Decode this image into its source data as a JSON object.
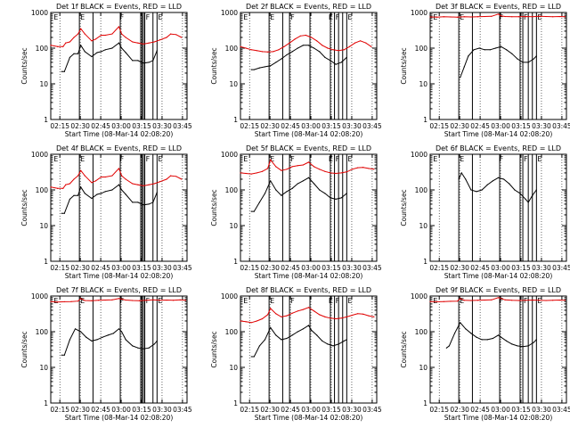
{
  "colors": {
    "black_series": "#000000",
    "red_series": "#e00000",
    "axis": "#000000"
  },
  "shared": {
    "ylabel": "Counts/sec",
    "xlabel": "Start Time (08-Mar-14 02:08:20)",
    "x_ticks": [
      "02:15",
      "02:30",
      "02:45",
      "03:00",
      "03:15",
      "03:30",
      "03:45"
    ],
    "y_ticks": [
      "1",
      "10",
      "100",
      "1000"
    ],
    "x_range_minutes": [
      0,
      100
    ],
    "x_tick_minutes": [
      6.67,
      21.67,
      36.67,
      51.67,
      66.67,
      81.67,
      96.67
    ],
    "y_range": [
      1,
      1000
    ],
    "y_scale": "log"
  },
  "chart_data": [
    {
      "type": "line",
      "title": "Det 1f BLACK = Events, RED = LLD",
      "flags": [
        "E",
        "E",
        "F",
        "F",
        "E"
      ],
      "flag_minutes": [
        1.5,
        21,
        50,
        69,
        78
      ],
      "vlines_minutes": [
        21,
        31,
        51,
        66,
        67,
        68,
        69,
        75,
        78
      ],
      "series": [
        {
          "name": "BLACK = Events",
          "x": [
            8,
            10,
            14,
            17,
            20,
            22,
            25,
            30,
            34,
            37,
            40,
            45,
            50,
            52,
            55,
            60,
            64,
            68,
            72,
            75,
            78
          ],
          "values": [
            22,
            22,
            55,
            70,
            70,
            120,
            80,
            58,
            75,
            80,
            90,
            100,
            140,
            100,
            75,
            45,
            45,
            38,
            40,
            45,
            85
          ]
        },
        {
          "name": "RED = LLD",
          "x": [
            0,
            5,
            9,
            11,
            14,
            17,
            20,
            22,
            25,
            30,
            33,
            37,
            40,
            45,
            50,
            52,
            55,
            60,
            64,
            68,
            72,
            76,
            80,
            85,
            88,
            92,
            96
          ],
          "values": [
            120,
            110,
            110,
            140,
            150,
            200,
            250,
            350,
            250,
            160,
            180,
            230,
            230,
            250,
            400,
            250,
            200,
            150,
            140,
            130,
            140,
            150,
            170,
            200,
            250,
            240,
            200
          ]
        }
      ]
    },
    {
      "type": "line",
      "title": "Det 2f BLACK = Events, RED = LLD",
      "flags": [
        "E",
        "E",
        "F",
        "E",
        "F",
        "E"
      ],
      "flag_minutes": [
        1.5,
        21,
        36,
        64,
        69,
        78
      ],
      "vlines_minutes": [
        21,
        31,
        36,
        51,
        66,
        69,
        72,
        75,
        78
      ],
      "series": [
        {
          "name": "BLACK = Events",
          "x": [
            8,
            10,
            14,
            18,
            22,
            26,
            30,
            34,
            38,
            42,
            46,
            50,
            54,
            58,
            62,
            66,
            70,
            74,
            78
          ],
          "values": [
            25,
            25,
            28,
            30,
            32,
            40,
            50,
            65,
            80,
            100,
            120,
            120,
            100,
            80,
            55,
            45,
            35,
            40,
            55
          ]
        },
        {
          "name": "RED = LLD",
          "x": [
            0,
            4,
            8,
            12,
            16,
            20,
            24,
            28,
            32,
            36,
            40,
            44,
            48,
            52,
            56,
            60,
            64,
            68,
            72,
            76,
            80,
            84,
            88,
            92,
            96
          ],
          "values": [
            110,
            100,
            90,
            85,
            80,
            78,
            80,
            90,
            110,
            140,
            180,
            220,
            230,
            200,
            160,
            120,
            100,
            90,
            85,
            90,
            110,
            140,
            160,
            140,
            110
          ]
        }
      ]
    },
    {
      "type": "line",
      "title": "Det 3f BLACK = Events, RED = LLD",
      "flags": [
        "E",
        "E",
        "F",
        "F",
        "E"
      ],
      "flag_minutes": [
        1.5,
        21,
        50,
        68,
        78
      ],
      "vlines_minutes": [
        21,
        31,
        51,
        66,
        68,
        72,
        75,
        78
      ],
      "series": [
        {
          "name": "BLACK = Events",
          "x": [
            22,
            25,
            28,
            32,
            36,
            40,
            44,
            48,
            52,
            56,
            60,
            64,
            68,
            72,
            76,
            78
          ],
          "values": [
            15,
            30,
            60,
            90,
            100,
            90,
            90,
            100,
            110,
            90,
            70,
            50,
            40,
            40,
            50,
            60
          ]
        },
        {
          "name": "RED = LLD",
          "x": [
            0,
            5,
            10,
            15,
            20,
            25,
            30,
            35,
            40,
            45,
            50,
            52,
            55,
            60,
            65,
            70,
            75,
            80,
            85,
            90,
            95,
            99
          ],
          "values": [
            750,
            740,
            760,
            750,
            740,
            760,
            750,
            760,
            770,
            780,
            900,
            800,
            770,
            760,
            760,
            770,
            760,
            780,
            770,
            760,
            770,
            760
          ]
        }
      ]
    },
    {
      "type": "line",
      "title": "Det 4f BLACK = Events, RED = LLD",
      "flags": [
        "E",
        "E",
        "F",
        "F",
        "E"
      ],
      "flag_minutes": [
        1.5,
        21,
        50,
        69,
        78
      ],
      "vlines_minutes": [
        21,
        31,
        51,
        66,
        67,
        68,
        69,
        75,
        78
      ],
      "series": [
        {
          "name": "BLACK = Events",
          "x": [
            8,
            10,
            14,
            17,
            20,
            22,
            25,
            30,
            34,
            37,
            40,
            45,
            50,
            52,
            55,
            60,
            64,
            68,
            72,
            75,
            78
          ],
          "values": [
            22,
            22,
            55,
            70,
            70,
            120,
            80,
            58,
            75,
            80,
            90,
            100,
            140,
            100,
            75,
            45,
            45,
            38,
            40,
            45,
            85
          ]
        },
        {
          "name": "RED = LLD",
          "x": [
            0,
            5,
            9,
            11,
            14,
            17,
            20,
            22,
            25,
            30,
            33,
            37,
            40,
            45,
            50,
            52,
            55,
            60,
            64,
            68,
            72,
            76,
            80,
            85,
            88,
            92,
            96
          ],
          "values": [
            120,
            110,
            110,
            140,
            150,
            200,
            250,
            350,
            250,
            160,
            180,
            230,
            230,
            250,
            400,
            250,
            200,
            150,
            140,
            130,
            140,
            150,
            170,
            200,
            250,
            240,
            200
          ]
        }
      ]
    },
    {
      "type": "line",
      "title": "Det 5f BLACK = Events, RED = LLD",
      "flags": [
        "E",
        "E",
        "F",
        "E",
        "F",
        "E"
      ],
      "flag_minutes": [
        1.5,
        21,
        36,
        64,
        69,
        78
      ],
      "vlines_minutes": [
        21,
        31,
        36,
        51,
        66,
        69,
        72,
        75,
        78
      ],
      "series": [
        {
          "name": "BLACK = Events",
          "x": [
            8,
            10,
            14,
            18,
            22,
            26,
            30,
            34,
            38,
            42,
            46,
            50,
            54,
            58,
            62,
            66,
            70,
            74,
            78
          ],
          "values": [
            25,
            25,
            45,
            80,
            180,
            100,
            70,
            90,
            110,
            150,
            180,
            220,
            150,
            100,
            80,
            60,
            55,
            60,
            80
          ]
        },
        {
          "name": "RED = LLD",
          "x": [
            0,
            4,
            8,
            12,
            16,
            20,
            22,
            26,
            30,
            34,
            38,
            42,
            46,
            50,
            54,
            58,
            62,
            66,
            70,
            74,
            78,
            82,
            86,
            90,
            94,
            98
          ],
          "values": [
            300,
            290,
            280,
            300,
            330,
            400,
            700,
            450,
            350,
            380,
            450,
            480,
            500,
            600,
            450,
            380,
            330,
            300,
            290,
            300,
            320,
            380,
            420,
            430,
            400,
            380
          ]
        }
      ]
    },
    {
      "type": "line",
      "title": "Det 6f BLACK = Events, RED = LLD",
      "flags": [
        "E",
        "E",
        "F",
        "F",
        "E"
      ],
      "flag_minutes": [
        1.5,
        21,
        50,
        68,
        78
      ],
      "vlines_minutes": [
        21,
        31,
        51,
        66,
        68,
        72,
        75,
        78
      ],
      "series": [
        {
          "name": "BLACK = Events",
          "x": [
            21,
            23,
            26,
            30,
            34,
            38,
            42,
            46,
            50,
            54,
            58,
            62,
            66,
            70,
            72,
            75,
            78
          ],
          "values": [
            200,
            300,
            200,
            100,
            90,
            100,
            140,
            180,
            220,
            200,
            150,
            100,
            80,
            55,
            45,
            70,
            100
          ]
        }
      ]
    },
    {
      "type": "line",
      "title": "Det 7f BLACK = Events, RED = LLD",
      "flags": [
        "E",
        "E",
        "F",
        "F",
        "E"
      ],
      "flag_minutes": [
        1.5,
        21,
        50,
        69,
        78
      ],
      "vlines_minutes": [
        21,
        31,
        51,
        66,
        67,
        68,
        69,
        75,
        78
      ],
      "series": [
        {
          "name": "BLACK = Events",
          "x": [
            8,
            10,
            14,
            18,
            22,
            26,
            30,
            34,
            38,
            42,
            46,
            50,
            52,
            55,
            60,
            64,
            68,
            72,
            76,
            78
          ],
          "values": [
            22,
            22,
            60,
            120,
            100,
            70,
            55,
            60,
            70,
            80,
            90,
            120,
            100,
            60,
            40,
            35,
            33,
            35,
            45,
            55
          ]
        },
        {
          "name": "RED = LLD",
          "x": [
            0,
            5,
            10,
            15,
            20,
            22,
            25,
            30,
            35,
            40,
            45,
            50,
            55,
            60,
            65,
            70,
            75,
            80,
            85,
            90,
            95,
            99
          ],
          "values": [
            700,
            680,
            690,
            700,
            720,
            850,
            750,
            740,
            760,
            770,
            780,
            850,
            770,
            750,
            740,
            760,
            780,
            760,
            770,
            760,
            780,
            760
          ]
        }
      ]
    },
    {
      "type": "line",
      "title": "Det 8f BLACK = Events, RED = LLD",
      "flags": [
        "E",
        "E",
        "F",
        "E",
        "F",
        "E"
      ],
      "flag_minutes": [
        1.5,
        21,
        36,
        64,
        69,
        78
      ],
      "vlines_minutes": [
        21,
        31,
        36,
        51,
        66,
        69,
        72,
        75,
        78
      ],
      "series": [
        {
          "name": "BLACK = Events",
          "x": [
            8,
            10,
            14,
            18,
            22,
            26,
            30,
            34,
            38,
            42,
            46,
            50,
            52,
            56,
            60,
            64,
            68,
            72,
            76,
            78
          ],
          "values": [
            20,
            20,
            40,
            60,
            130,
            80,
            60,
            65,
            80,
            100,
            120,
            150,
            110,
            80,
            55,
            45,
            40,
            45,
            55,
            60
          ]
        },
        {
          "name": "RED = LLD",
          "x": [
            0,
            4,
            8,
            12,
            16,
            20,
            22,
            26,
            30,
            34,
            38,
            42,
            46,
            50,
            54,
            58,
            62,
            66,
            70,
            74,
            78,
            82,
            86,
            90,
            94,
            98
          ],
          "values": [
            200,
            190,
            180,
            200,
            230,
            300,
            450,
            320,
            260,
            280,
            330,
            380,
            420,
            480,
            380,
            300,
            260,
            240,
            230,
            240,
            260,
            290,
            320,
            310,
            280,
            260
          ]
        }
      ]
    },
    {
      "type": "line",
      "title": "Det 9f BLACK = Events, RED = LLD",
      "flags": [
        "E",
        "E",
        "F",
        "F",
        "E"
      ],
      "flag_minutes": [
        1.5,
        21,
        50,
        68,
        78
      ],
      "vlines_minutes": [
        21,
        31,
        51,
        66,
        68,
        72,
        75,
        78
      ],
      "series": [
        {
          "name": "BLACK = Events",
          "x": [
            12,
            14,
            18,
            22,
            26,
            30,
            34,
            38,
            42,
            46,
            50,
            52,
            56,
            60,
            64,
            68,
            72,
            76,
            78
          ],
          "values": [
            35,
            40,
            90,
            180,
            120,
            90,
            70,
            60,
            60,
            65,
            80,
            70,
            55,
            45,
            40,
            38,
            40,
            50,
            60
          ]
        },
        {
          "name": "RED = LLD",
          "x": [
            0,
            5,
            10,
            15,
            20,
            22,
            25,
            30,
            35,
            40,
            45,
            50,
            55,
            60,
            65,
            70,
            75,
            80,
            85,
            90,
            95,
            99
          ],
          "values": [
            700,
            690,
            700,
            710,
            720,
            850,
            760,
            750,
            760,
            770,
            780,
            900,
            780,
            760,
            750,
            760,
            770,
            760,
            750,
            760,
            770,
            760
          ]
        }
      ]
    }
  ]
}
